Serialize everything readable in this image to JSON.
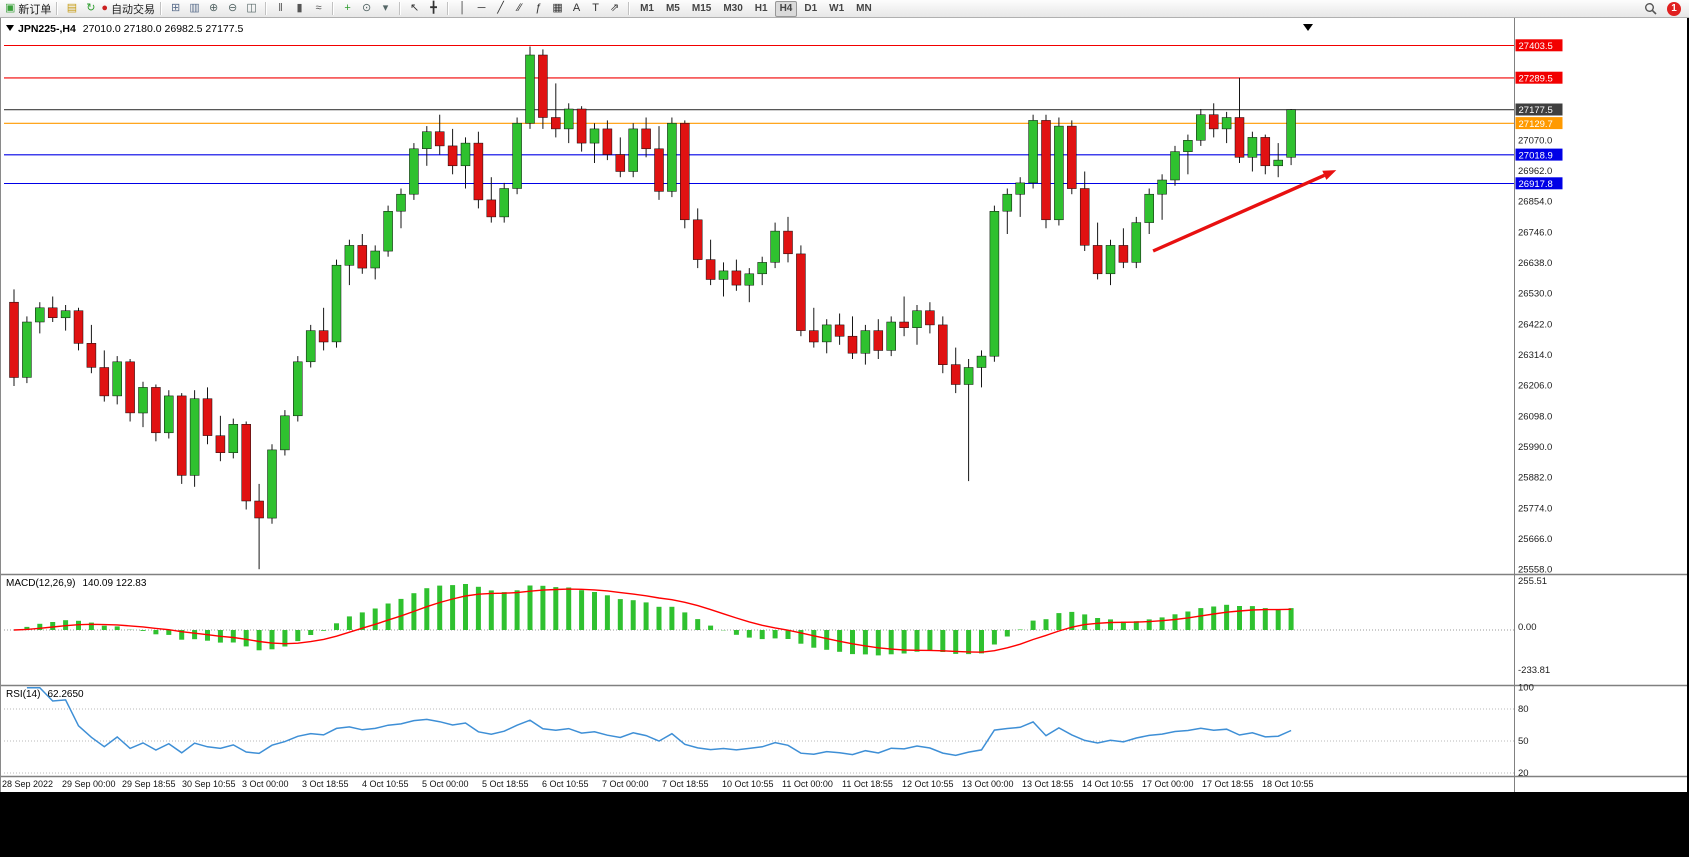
{
  "toolbar": {
    "groups": [
      {
        "items": [
          {
            "name": "new-order-button",
            "glyph": "▣",
            "color": "#3aa03a",
            "label": "新订单"
          }
        ]
      },
      {
        "items": [
          {
            "name": "history-icon",
            "glyph": "▤",
            "color": "#c69b12"
          },
          {
            "name": "refresh-icon",
            "glyph": "↻",
            "color": "#2e9e2e"
          },
          {
            "name": "autotrade-button",
            "glyph": "●",
            "color": "#cc2222",
            "label": "自动交易"
          }
        ]
      },
      {
        "items": [
          {
            "name": "new-chart-icon",
            "glyph": "⊞",
            "color": "#5a6e8c"
          },
          {
            "name": "profiles-icon",
            "glyph": "▥",
            "color": "#5a6e8c"
          },
          {
            "name": "zoom-in-icon",
            "glyph": "⊕",
            "color": "#566"
          },
          {
            "name": "zoom-out-icon",
            "glyph": "⊖",
            "color": "#566"
          },
          {
            "name": "tile-windows-icon",
            "glyph": "◫",
            "color": "#566"
          }
        ]
      },
      {
        "items": [
          {
            "name": "ohlc-bars-icon",
            "glyph": "‖",
            "color": "#555"
          },
          {
            "name": "candlestick-icon",
            "glyph": "▮",
            "color": "#555"
          },
          {
            "name": "line-chart-icon",
            "glyph": "≈",
            "color": "#555"
          }
        ]
      },
      {
        "items": [
          {
            "name": "add-indicator-icon",
            "glyph": "+",
            "color": "#2e9e2e"
          },
          {
            "name": "periods-icon",
            "glyph": "⊙",
            "color": "#566"
          },
          {
            "name": "templates-icon",
            "glyph": "▾",
            "color": "#566"
          }
        ]
      },
      {
        "items": [
          {
            "name": "cursor-icon",
            "glyph": "↖",
            "color": "#333"
          },
          {
            "name": "crosshair-icon",
            "glyph": "╋",
            "color": "#333"
          }
        ]
      },
      {
        "items": [
          {
            "name": "vertical-line-icon",
            "glyph": "│",
            "color": "#333"
          },
          {
            "name": "horizontal-line-icon",
            "glyph": "─",
            "color": "#333"
          },
          {
            "name": "trendline-icon",
            "glyph": "╱",
            "color": "#333"
          },
          {
            "name": "channel-icon",
            "glyph": "∕∕",
            "color": "#333"
          },
          {
            "name": "fibonacci-icon",
            "glyph": "ƒ",
            "color": "#333"
          },
          {
            "name": "grid-icon",
            "glyph": "▦",
            "color": "#333"
          },
          {
            "name": "text-icon",
            "glyph": "A",
            "color": "#333"
          },
          {
            "name": "text-label-icon",
            "glyph": "T",
            "color": "#333"
          },
          {
            "name": "arrows-icon",
            "glyph": "⇗",
            "color": "#333"
          }
        ]
      }
    ],
    "timeframes": [
      "M1",
      "M5",
      "M15",
      "M30",
      "H1",
      "H4",
      "D1",
      "W1",
      "MN"
    ],
    "active_timeframe": "H4",
    "notification_count": "1"
  },
  "chart_header": {
    "symbol_period": "JPN225-,H4",
    "ohlc": "27010.0 27180.0 26982.5 27177.5"
  },
  "indicator_labels": {
    "macd_name": "MACD(12,26,9)",
    "macd_values": "140.09 122.83",
    "rsi_name": "RSI(14)",
    "rsi_value": "62.2650"
  },
  "axes": {
    "price_grid": [
      27070.0,
      26962.0,
      26854.0,
      26746.0,
      26638.0,
      26530.0,
      26422.0,
      26314.0,
      26206.0,
      26098.0,
      25990.0,
      25882.0,
      25774.0,
      25666.0,
      25558.0
    ],
    "macd": [
      "255.51",
      "0.00",
      "-233.81"
    ],
    "rsi": [
      100,
      80,
      50,
      20
    ],
    "dates": [
      "28 Sep 2022",
      "29 Sep 00:00",
      "29 Sep 18:55",
      "30 Sep 10:55",
      "3 Oct 00:00",
      "3 Oct 18:55",
      "4 Oct 10:55",
      "5 Oct 00:00",
      "5 Oct 18:55",
      "6 Oct 10:55",
      "7 Oct 00:00",
      "7 Oct 18:55",
      "10 Oct 10:55",
      "11 Oct 00:00",
      "11 Oct 18:55",
      "12 Oct 10:55",
      "13 Oct 00:00",
      "13 Oct 18:55",
      "14 Oct 10:55",
      "17 Oct 00:00",
      "17 Oct 18:55",
      "18 Oct 10:55"
    ]
  },
  "levels": [
    {
      "price": 27403.5,
      "color": "#f20000",
      "style": "resistance"
    },
    {
      "price": 27289.5,
      "color": "#f20000",
      "style": "resistance"
    },
    {
      "price": 27177.5,
      "color": "#3f3f3f",
      "style": "bid"
    },
    {
      "price": 27129.7,
      "color": "#ff9a00",
      "style": "pivot"
    },
    {
      "price": 27018.9,
      "color": "#0000e6",
      "style": "support"
    },
    {
      "price": 26917.8,
      "color": "#0000e6",
      "style": "support"
    }
  ],
  "colors": {
    "bull": "#2fc12f",
    "bear": "#e01212",
    "wick": "#161616",
    "macd_hist": "#2fc12f",
    "macd_signal": "#ff0000",
    "rsi_line": "#3e8fd6",
    "arrow": "#e81010",
    "panel_border": "#808080"
  },
  "chart_data": {
    "type": "candlestick",
    "symbol": "JPN225-",
    "timeframe": "H4",
    "current_bar": {
      "open": 27010.0,
      "high": 27180.0,
      "low": 26982.5,
      "close": 27177.5
    },
    "ylim": [
      25550,
      27430
    ],
    "candles": [
      [
        26500,
        26545,
        26205,
        26235
      ],
      [
        26235,
        26450,
        26215,
        26430
      ],
      [
        26430,
        26500,
        26390,
        26480
      ],
      [
        26480,
        26520,
        26430,
        26445
      ],
      [
        26445,
        26490,
        26400,
        26470
      ],
      [
        26470,
        26480,
        26330,
        26355
      ],
      [
        26355,
        26420,
        26250,
        26270
      ],
      [
        26270,
        26330,
        26150,
        26170
      ],
      [
        26170,
        26310,
        26140,
        26290
      ],
      [
        26290,
        26300,
        26080,
        26110
      ],
      [
        26110,
        26220,
        26060,
        26200
      ],
      [
        26200,
        26210,
        26010,
        26040
      ],
      [
        26040,
        26190,
        26020,
        26170
      ],
      [
        26170,
        26180,
        25860,
        25890
      ],
      [
        25890,
        26190,
        25850,
        26160
      ],
      [
        26160,
        26200,
        26000,
        26030
      ],
      [
        26030,
        26100,
        25940,
        25970
      ],
      [
        25970,
        26090,
        25950,
        26070
      ],
      [
        26070,
        26080,
        25770,
        25800
      ],
      [
        25800,
        25860,
        25560,
        25740
      ],
      [
        25740,
        26000,
        25720,
        25980
      ],
      [
        25980,
        26120,
        25960,
        26100
      ],
      [
        26100,
        26310,
        26080,
        26290
      ],
      [
        26290,
        26420,
        26270,
        26400
      ],
      [
        26400,
        26480,
        26330,
        26360
      ],
      [
        26360,
        26650,
        26340,
        26630
      ],
      [
        26630,
        26720,
        26560,
        26700
      ],
      [
        26700,
        26740,
        26600,
        26620
      ],
      [
        26620,
        26700,
        26580,
        26680
      ],
      [
        26680,
        26840,
        26660,
        26820
      ],
      [
        26820,
        26900,
        26760,
        26880
      ],
      [
        26880,
        27060,
        26860,
        27040
      ],
      [
        27040,
        27120,
        26980,
        27100
      ],
      [
        27100,
        27160,
        27020,
        27050
      ],
      [
        27050,
        27110,
        26950,
        26980
      ],
      [
        26980,
        27080,
        26900,
        27060
      ],
      [
        27060,
        27100,
        26830,
        26860
      ],
      [
        26860,
        26940,
        26780,
        26800
      ],
      [
        26800,
        26920,
        26780,
        26900
      ],
      [
        26900,
        27150,
        26880,
        27130
      ],
      [
        27130,
        27400,
        27110,
        27370
      ],
      [
        27370,
        27390,
        27110,
        27150
      ],
      [
        27150,
        27270,
        27080,
        27110
      ],
      [
        27110,
        27200,
        27060,
        27180
      ],
      [
        27180,
        27190,
        27030,
        27060
      ],
      [
        27060,
        27130,
        26990,
        27110
      ],
      [
        27110,
        27140,
        27000,
        27020
      ],
      [
        27020,
        27080,
        26940,
        26960
      ],
      [
        26960,
        27130,
        26940,
        27110
      ],
      [
        27110,
        27150,
        27010,
        27040
      ],
      [
        27040,
        27120,
        26860,
        26890
      ],
      [
        26890,
        27150,
        26870,
        27130
      ],
      [
        27130,
        27140,
        26760,
        26790
      ],
      [
        26790,
        26830,
        26620,
        26650
      ],
      [
        26650,
        26720,
        26560,
        26580
      ],
      [
        26580,
        26640,
        26520,
        26610
      ],
      [
        26610,
        26650,
        26540,
        26560
      ],
      [
        26560,
        26620,
        26500,
        26600
      ],
      [
        26600,
        26660,
        26560,
        26640
      ],
      [
        26640,
        26780,
        26620,
        26750
      ],
      [
        26750,
        26800,
        26640,
        26670
      ],
      [
        26670,
        26700,
        26380,
        26400
      ],
      [
        26400,
        26480,
        26340,
        26360
      ],
      [
        26360,
        26440,
        26320,
        26420
      ],
      [
        26420,
        26460,
        26350,
        26380
      ],
      [
        26380,
        26450,
        26300,
        26320
      ],
      [
        26320,
        26420,
        26280,
        26400
      ],
      [
        26400,
        26440,
        26300,
        26330
      ],
      [
        26330,
        26450,
        26310,
        26430
      ],
      [
        26430,
        26520,
        26380,
        26410
      ],
      [
        26410,
        26490,
        26350,
        26470
      ],
      [
        26470,
        26500,
        26390,
        26420
      ],
      [
        26420,
        26450,
        26250,
        26280
      ],
      [
        26280,
        26340,
        26180,
        26210
      ],
      [
        26210,
        26300,
        25870,
        26270
      ],
      [
        26270,
        26330,
        26200,
        26310
      ],
      [
        26310,
        26840,
        26290,
        26820
      ],
      [
        26820,
        26900,
        26740,
        26880
      ],
      [
        26880,
        26940,
        26800,
        26920
      ],
      [
        26920,
        27160,
        26900,
        27140
      ],
      [
        27140,
        27160,
        26760,
        26790
      ],
      [
        26790,
        27150,
        26770,
        27120
      ],
      [
        27120,
        27140,
        26880,
        26900
      ],
      [
        26900,
        26960,
        26680,
        26700
      ],
      [
        26700,
        26780,
        26580,
        26600
      ],
      [
        26600,
        26720,
        26560,
        26700
      ],
      [
        26700,
        26760,
        26620,
        26640
      ],
      [
        26640,
        26800,
        26620,
        26780
      ],
      [
        26780,
        26900,
        26740,
        26880
      ],
      [
        26880,
        26950,
        26790,
        26930
      ],
      [
        26930,
        27050,
        26910,
        27030
      ],
      [
        27030,
        27090,
        26950,
        27070
      ],
      [
        27070,
        27180,
        27050,
        27160
      ],
      [
        27160,
        27200,
        27080,
        27110
      ],
      [
        27110,
        27170,
        27060,
        27150
      ],
      [
        27150,
        27290,
        26990,
        27010
      ],
      [
        27010,
        27100,
        26960,
        27080
      ],
      [
        27080,
        27090,
        26950,
        26980
      ],
      [
        26980,
        27060,
        26940,
        27000
      ],
      [
        27010,
        27180,
        26982.5,
        27177.5
      ]
    ],
    "indicators": [
      {
        "type": "macd",
        "params": [
          12,
          26,
          9
        ],
        "last_values": [
          140.09,
          122.83
        ],
        "hist_color": "#2fc12f",
        "signal_color": "#ff0000"
      },
      {
        "type": "rsi",
        "params": [
          14
        ],
        "last_value": 62.265,
        "levels": [
          80,
          50,
          20
        ],
        "line_color": "#3e8fd6"
      }
    ],
    "annotation": {
      "type": "arrow",
      "color": "#e81010",
      "from": {
        "bar": 88.3,
        "price": 26680
      },
      "to": {
        "bar": 102.5,
        "price": 26965
      }
    }
  }
}
